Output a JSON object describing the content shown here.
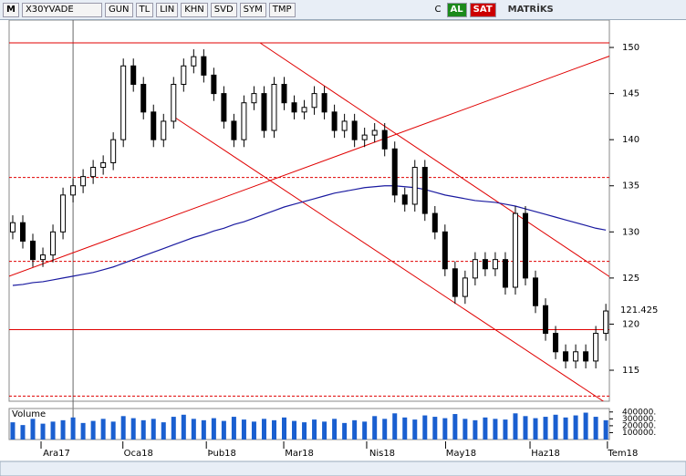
{
  "toolbar": {
    "logo": "M",
    "symbol": "X30YVADE",
    "buttons": [
      "GUN",
      "TL",
      "LIN",
      "KHN",
      "SVD",
      "SYM",
      "TMP"
    ],
    "buy": "AL",
    "sell": "SAT",
    "brand": "MATRİKS"
  },
  "chart_data": {
    "type": "candlestick",
    "open": [
      130,
      131,
      129,
      127,
      127.5,
      130,
      134,
      135,
      136,
      137,
      137.5,
      140,
      148,
      146,
      143,
      140,
      142,
      146,
      148,
      149,
      147,
      145,
      142,
      140,
      144,
      145,
      141,
      146,
      144,
      143,
      143.5,
      145,
      143,
      141,
      142,
      140,
      140.5,
      141,
      139,
      134,
      133,
      137,
      132,
      130,
      126,
      123,
      125,
      127,
      126,
      127,
      124,
      132,
      125,
      122,
      119,
      117,
      116,
      117,
      116,
      119
    ],
    "high": [
      131.8,
      131.8,
      129.8,
      128.3,
      130.8,
      134.8,
      135.8,
      136.8,
      137.8,
      138.3,
      140.8,
      148.8,
      148.8,
      146.8,
      143.8,
      142.8,
      146.8,
      148.8,
      149.8,
      149.8,
      147.8,
      145.8,
      142.8,
      144.8,
      145.8,
      145.8,
      146.8,
      146.8,
      144.8,
      144.3,
      145.8,
      145.8,
      143.8,
      142.8,
      142.8,
      141.3,
      141.8,
      141.8,
      139.8,
      134.8,
      137.8,
      137.8,
      132.8,
      130.8,
      126.8,
      125.8,
      127.8,
      127.8,
      127.8,
      127.8,
      132.8,
      132.8,
      125.8,
      122.8,
      119.8,
      117.8,
      117.8,
      117.8,
      119.8,
      122.2
    ],
    "low": [
      129.2,
      128.2,
      126.2,
      126.2,
      126.7,
      129.2,
      133.2,
      134.2,
      135.2,
      136.2,
      136.7,
      139.2,
      145.2,
      142.2,
      139.2,
      139.2,
      141.2,
      145.2,
      147.2,
      146.2,
      144.2,
      141.2,
      139.2,
      139.2,
      143.2,
      140.2,
      140.2,
      143.2,
      142.2,
      142.2,
      142.7,
      142.2,
      140.2,
      140.2,
      139.2,
      139.2,
      139.7,
      138.2,
      133.2,
      132.2,
      132.2,
      131.2,
      129.2,
      125.2,
      122.2,
      122.2,
      124.2,
      125.2,
      125.2,
      123.2,
      123.2,
      124.2,
      121.2,
      118.2,
      116.2,
      115.2,
      115.2,
      115.2,
      115.2,
      118.2
    ],
    "close": [
      131,
      129,
      127,
      127.5,
      130,
      134,
      135,
      136,
      137,
      137.5,
      140,
      148,
      146,
      143,
      140,
      142,
      146,
      148,
      149,
      147,
      145,
      142,
      140,
      144,
      145,
      141,
      146,
      144,
      143,
      143.5,
      145,
      143,
      141,
      142,
      140,
      140.5,
      141,
      139,
      134,
      133,
      137,
      132,
      130,
      126,
      123,
      125,
      127,
      126,
      127,
      124,
      132,
      125,
      122,
      119,
      117,
      116,
      117,
      116,
      119,
      121.425
    ],
    "ma": {
      "color": "#1a1aa0",
      "values": [
        124.2,
        124.3,
        124.5,
        124.6,
        124.8,
        125.0,
        125.2,
        125.4,
        125.6,
        125.9,
        126.2,
        126.6,
        127.0,
        127.4,
        127.8,
        128.2,
        128.6,
        129.0,
        129.4,
        129.7,
        130.1,
        130.4,
        130.8,
        131.1,
        131.5,
        131.9,
        132.3,
        132.7,
        133.0,
        133.3,
        133.6,
        133.9,
        134.2,
        134.4,
        134.6,
        134.8,
        134.9,
        135.0,
        135.0,
        134.9,
        134.8,
        134.6,
        134.3,
        134.0,
        133.8,
        133.6,
        133.4,
        133.3,
        133.2,
        133.0,
        132.8,
        132.5,
        132.2,
        131.9,
        131.6,
        131.3,
        131.0,
        130.7,
        130.4,
        130.2
      ]
    },
    "xlim": [
      -0.36,
      59.35
    ],
    "ylim": [
      111.64,
      152.97
    ],
    "yticks": [
      115,
      120,
      125,
      130,
      135,
      140,
      145,
      150
    ],
    "xticks": [
      {
        "value": 4.36,
        "label": "Ara17"
      },
      {
        "value": 12.5,
        "label": "Oca18"
      },
      {
        "value": 20.8,
        "label": "Þub18"
      },
      {
        "value": 28.5,
        "label": "Mar18"
      },
      {
        "value": 36.75,
        "label": "Nis18"
      },
      {
        "value": 44.6,
        "label": "May18"
      },
      {
        "value": 53.0,
        "label": "Haz18"
      },
      {
        "value": 60.7,
        "label": "Tem18"
      }
    ],
    "line_color": "#e00000",
    "cursor_index": 6,
    "hlines": [
      {
        "value": 150.5,
        "style": "solid"
      },
      {
        "value": 135.9,
        "style": "dashed"
      },
      {
        "value": 126.8,
        "style": "dashed"
      },
      {
        "value": 119.4,
        "style": "solid"
      },
      {
        "value": 112.2,
        "style": "dashed"
      }
    ],
    "trendlines": [
      {
        "x": [
          24.6,
          59.7
        ],
        "y": [
          150.5,
          124.9
        ]
      },
      {
        "x": [
          16.0,
          58.8
        ],
        "y": [
          142.5,
          111.6
        ]
      },
      {
        "x": [
          -0.36,
          59.7
        ],
        "y": [
          125.2,
          149.2
        ]
      }
    ],
    "volume": {
      "label": "Volume",
      "color": "#1a5fd0",
      "vlim": [
        0,
        450000
      ],
      "values": [
        250000,
        210000,
        300000,
        230000,
        260000,
        280000,
        320000,
        240000,
        270000,
        300000,
        260000,
        340000,
        310000,
        280000,
        300000,
        250000,
        330000,
        360000,
        300000,
        280000,
        310000,
        270000,
        330000,
        290000,
        260000,
        300000,
        280000,
        320000,
        270000,
        250000,
        290000,
        260000,
        300000,
        240000,
        280000,
        260000,
        340000,
        300000,
        380000,
        320000,
        290000,
        350000,
        330000,
        310000,
        370000,
        300000,
        280000,
        320000,
        300000,
        290000,
        380000,
        340000,
        310000,
        330000,
        360000,
        320000,
        350000,
        390000,
        330000,
        280000
      ],
      "ticks": [
        {
          "value": 400000,
          "label": "400000."
        },
        {
          "value": 300000,
          "label": "300000."
        },
        {
          "value": 200000,
          "label": "200000."
        },
        {
          "value": 100000,
          "label": "100000."
        }
      ]
    }
  }
}
